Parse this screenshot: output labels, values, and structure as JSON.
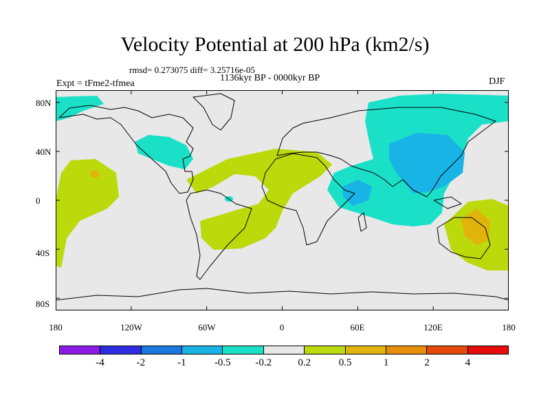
{
  "title": "Velocity Potential at 200 hPa (km2/s)",
  "subtitle": "rmsd= 0.273075 diff= 3.25716e-05",
  "period": "1136kyr BP - 0000kyr BP",
  "experiment": "Expt = tFme2-tfmea",
  "season": "DJF",
  "map": {
    "lon_range": [
      -180,
      180
    ],
    "lat_range": [
      -90,
      90
    ],
    "ocean_color": "#e8e8e8",
    "y_ticks": [
      {
        "lat": 80,
        "label": "80N"
      },
      {
        "lat": 40,
        "label": "40N"
      },
      {
        "lat": 0,
        "label": "0"
      },
      {
        "lat": -40,
        "label": "40S"
      },
      {
        "lat": -80,
        "label": "80S"
      }
    ],
    "x_ticks": [
      {
        "lon": -180,
        "label": "180"
      },
      {
        "lon": -120,
        "label": "120W"
      },
      {
        "lon": -60,
        "label": "60W"
      },
      {
        "lon": 0,
        "label": "0"
      },
      {
        "lon": 60,
        "label": "60E"
      },
      {
        "lon": 120,
        "label": "120E"
      },
      {
        "lon": 180,
        "label": "180"
      }
    ]
  },
  "colorbar": {
    "colors": [
      "#8a1be6",
      "#2c2ce0",
      "#1a78e0",
      "#19b4e6",
      "#1ae0c8",
      "#e8e8e8",
      "#bcd90c",
      "#e0b40a",
      "#e88e0c",
      "#e64a0a",
      "#e60c0c"
    ],
    "labels": [
      "-4",
      "-2",
      "-1",
      "-0.5",
      "-0.2",
      "0.2",
      "0.5",
      "1",
      "2",
      "4"
    ]
  }
}
